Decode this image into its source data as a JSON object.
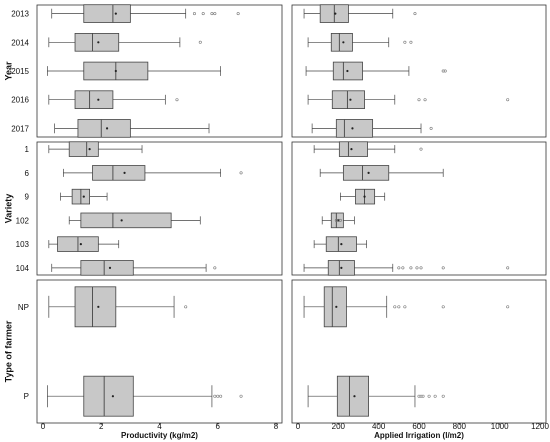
{
  "colors": {
    "box_fill": "#c8c8c8",
    "box_stroke": "#444444",
    "panel_stroke": "#333333",
    "outlier": "#777777",
    "mean_marker": "#222222"
  },
  "chart_data": {
    "type": "boxplot",
    "orientation": "horizontal",
    "grid": false,
    "columns": [
      {
        "id": "productivity",
        "xlabel": "Productivity (kg/m2)",
        "xlim": [
          0,
          8
        ],
        "ticks": [
          0,
          2,
          4,
          6,
          8
        ]
      },
      {
        "id": "irrigation",
        "xlabel": "Applied Irrigation (l/m2)",
        "xlim": [
          0,
          1200
        ],
        "ticks": [
          0,
          200,
          400,
          600,
          800,
          1000,
          1200
        ]
      }
    ],
    "groups": [
      {
        "label": "Year",
        "categories": [
          "2013",
          "2014",
          "2015",
          "2016",
          "2017"
        ],
        "productivity": [
          {
            "min": 0.3,
            "q1": 1.4,
            "median": 2.4,
            "q3": 3.0,
            "max": 4.9,
            "mean": 2.5,
            "outliers": [
              5.2,
              5.5,
              5.8,
              5.9,
              6.7
            ]
          },
          {
            "min": 0.2,
            "q1": 1.1,
            "median": 1.7,
            "q3": 2.6,
            "max": 4.7,
            "mean": 1.9,
            "outliers": [
              5.4
            ]
          },
          {
            "min": 0.15,
            "q1": 1.4,
            "median": 2.5,
            "q3": 3.6,
            "max": 6.1,
            "mean": 2.5,
            "outliers": []
          },
          {
            "min": 0.2,
            "q1": 1.1,
            "median": 1.6,
            "q3": 2.4,
            "max": 4.2,
            "mean": 1.9,
            "outliers": [
              4.6
            ]
          },
          {
            "min": 0.4,
            "q1": 1.2,
            "median": 2.0,
            "q3": 3.0,
            "max": 5.7,
            "mean": 2.2,
            "outliers": []
          }
        ],
        "irrigation": [
          {
            "min": 30,
            "q1": 110,
            "median": 180,
            "q3": 250,
            "max": 470,
            "mean": 185,
            "outliers": [
              580
            ]
          },
          {
            "min": 50,
            "q1": 165,
            "median": 205,
            "q3": 270,
            "max": 450,
            "mean": 225,
            "outliers": [
              530,
              560
            ]
          },
          {
            "min": 40,
            "q1": 175,
            "median": 225,
            "q3": 320,
            "max": 550,
            "mean": 245,
            "outliers": [
              720,
              730
            ]
          },
          {
            "min": 50,
            "q1": 170,
            "median": 245,
            "q3": 330,
            "max": 480,
            "mean": 260,
            "outliers": [
              600,
              630,
              1040
            ]
          },
          {
            "min": 70,
            "q1": 190,
            "median": 230,
            "q3": 370,
            "max": 610,
            "mean": 270,
            "outliers": [
              660
            ]
          }
        ]
      },
      {
        "label": "Variety",
        "categories": [
          "1",
          "6",
          "9",
          "102",
          "103",
          "104"
        ],
        "productivity": [
          {
            "min": 0.2,
            "q1": 0.9,
            "median": 1.5,
            "q3": 1.9,
            "max": 3.4,
            "mean": 1.6,
            "outliers": []
          },
          {
            "min": 0.7,
            "q1": 1.7,
            "median": 2.4,
            "q3": 3.5,
            "max": 6.1,
            "mean": 2.8,
            "outliers": [
              6.8
            ]
          },
          {
            "min": 0.6,
            "q1": 1.0,
            "median": 1.3,
            "q3": 1.6,
            "max": 2.2,
            "mean": 1.4,
            "outliers": []
          },
          {
            "min": 0.9,
            "q1": 1.3,
            "median": 2.4,
            "q3": 4.4,
            "max": 5.4,
            "mean": 2.7,
            "outliers": []
          },
          {
            "min": 0.2,
            "q1": 0.5,
            "median": 1.2,
            "q3": 1.9,
            "max": 2.6,
            "mean": 1.3,
            "outliers": []
          },
          {
            "min": 0.3,
            "q1": 1.3,
            "median": 2.1,
            "q3": 3.1,
            "max": 5.6,
            "mean": 2.3,
            "outliers": [
              5.9
            ]
          }
        ],
        "irrigation": [
          {
            "min": 80,
            "q1": 205,
            "median": 250,
            "q3": 345,
            "max": 480,
            "mean": 265,
            "outliers": [
              610
            ]
          },
          {
            "min": 110,
            "q1": 225,
            "median": 320,
            "q3": 450,
            "max": 720,
            "mean": 350,
            "outliers": []
          },
          {
            "min": 210,
            "q1": 285,
            "median": 330,
            "q3": 380,
            "max": 430,
            "mean": 330,
            "outliers": []
          },
          {
            "min": 120,
            "q1": 165,
            "median": 190,
            "q3": 225,
            "max": 280,
            "mean": 200,
            "outliers": [
              190,
              200,
              210
            ]
          },
          {
            "min": 80,
            "q1": 140,
            "median": 200,
            "q3": 290,
            "max": 340,
            "mean": 215,
            "outliers": []
          },
          {
            "min": 30,
            "q1": 150,
            "median": 205,
            "q3": 280,
            "max": 470,
            "mean": 215,
            "outliers": [
              500,
              520,
              560,
              590,
              610,
              720,
              1040
            ]
          }
        ]
      },
      {
        "label": "Type of farmer",
        "categories": [
          "NP",
          "P"
        ],
        "productivity": [
          {
            "min": 0.2,
            "q1": 1.1,
            "median": 1.7,
            "q3": 2.5,
            "max": 4.5,
            "mean": 1.9,
            "outliers": [
              4.9
            ]
          },
          {
            "min": 0.15,
            "q1": 1.4,
            "median": 2.1,
            "q3": 3.1,
            "max": 5.8,
            "mean": 2.4,
            "outliers": [
              5.9,
              6.0,
              6.1,
              6.8
            ]
          }
        ],
        "irrigation": [
          {
            "min": 30,
            "q1": 130,
            "median": 170,
            "q3": 240,
            "max": 440,
            "mean": 190,
            "outliers": [
              480,
              500,
              530,
              720,
              1040
            ]
          },
          {
            "min": 50,
            "q1": 195,
            "median": 255,
            "q3": 350,
            "max": 580,
            "mean": 280,
            "outliers": [
              600,
              610,
              620,
              650,
              680,
              720
            ]
          }
        ]
      }
    ]
  }
}
